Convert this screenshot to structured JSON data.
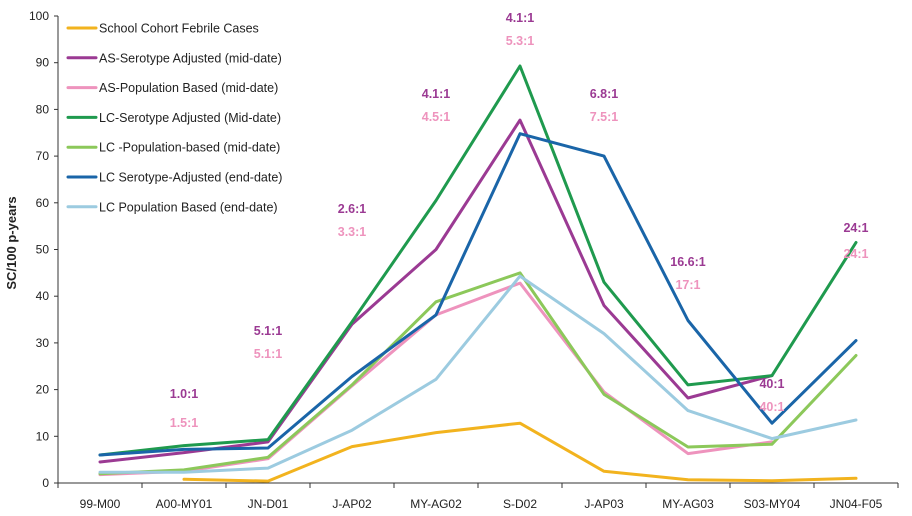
{
  "chart_data": {
    "type": "line",
    "categories": [
      "99-M00",
      "A00-MY01",
      "JN-D01",
      "J-AP02",
      "MY-AG02",
      "S-D02",
      "J-AP03",
      "MY-AG03",
      "S03-MY04",
      "JN04-F05"
    ],
    "ylabel": "SC/100 p-years",
    "ylim": [
      0,
      100
    ],
    "yticks": [
      0,
      10,
      20,
      30,
      40,
      50,
      60,
      70,
      80,
      90,
      100
    ],
    "grid": false,
    "legend_position": "top-left",
    "series": [
      {
        "name": "School Cohort Febrile Cases",
        "color": "#f2b31e",
        "values": [
          null,
          0.8,
          0.4,
          7.8,
          10.8,
          12.8,
          2.5,
          0.7,
          0.5,
          1.0
        ]
      },
      {
        "name": "AS-Serotype Adjusted (mid-date)",
        "color": "#9b3a93",
        "values": [
          4.5,
          6.5,
          8.8,
          34.0,
          50.0,
          77.7,
          38.0,
          18.2,
          23.0,
          null
        ]
      },
      {
        "name": "AS-Population Based (mid-date)",
        "color": "#ee93bd",
        "values": [
          1.8,
          2.5,
          5.2,
          20.8,
          36.0,
          42.8,
          19.5,
          6.3,
          8.8,
          null
        ]
      },
      {
        "name": "LC-Serotype Adjusted (Mid-date)",
        "color": "#1f9a4e",
        "values": [
          6.0,
          8.0,
          9.3,
          34.5,
          60.5,
          89.3,
          43.0,
          21.0,
          23.0,
          51.5
        ]
      },
      {
        "name": "LC -Population-based (mid-date)",
        "color": "#8cc85a",
        "values": [
          2.0,
          2.8,
          5.5,
          21.0,
          38.8,
          45.0,
          19.0,
          7.7,
          8.3,
          27.3
        ]
      },
      {
        "name": "LC Serotype-Adjusted (end-date)",
        "color": "#1a65a8",
        "values": [
          6.0,
          7.2,
          7.5,
          22.8,
          36.0,
          74.8,
          70.0,
          34.8,
          12.8,
          30.5
        ]
      },
      {
        "name": "LC Population Based (end-date)",
        "color": "#9ccbe0",
        "values": [
          2.3,
          2.3,
          3.2,
          11.3,
          22.2,
          44.3,
          32.0,
          15.5,
          9.5,
          13.5
        ]
      }
    ],
    "annotations": [
      {
        "category": "A00-MY01",
        "upper": "1.0:1",
        "lower": "1.5:1"
      },
      {
        "category": "JN-D01",
        "upper": "5.1:1",
        "lower": "5.1:1"
      },
      {
        "category": "J-AP02",
        "upper": "2.6:1",
        "lower": "3.3:1"
      },
      {
        "category": "MY-AG02",
        "upper": "4.1:1",
        "lower": "4.5:1"
      },
      {
        "category": "S-D02",
        "upper": "4.1:1",
        "lower": "5.3:1"
      },
      {
        "category": "J-AP03",
        "upper": "6.8:1",
        "lower": "7.5:1"
      },
      {
        "category": "MY-AG03",
        "upper": "16.6:1",
        "lower": "17:1"
      },
      {
        "category": "S03-MY04",
        "upper": "40:1",
        "lower": "40:1"
      },
      {
        "category": "JN04-F05",
        "upper": "24:1",
        "lower": "24:1"
      }
    ],
    "annotation_colors": {
      "upper": "#9b3a93",
      "lower": "#ee93bd"
    }
  }
}
